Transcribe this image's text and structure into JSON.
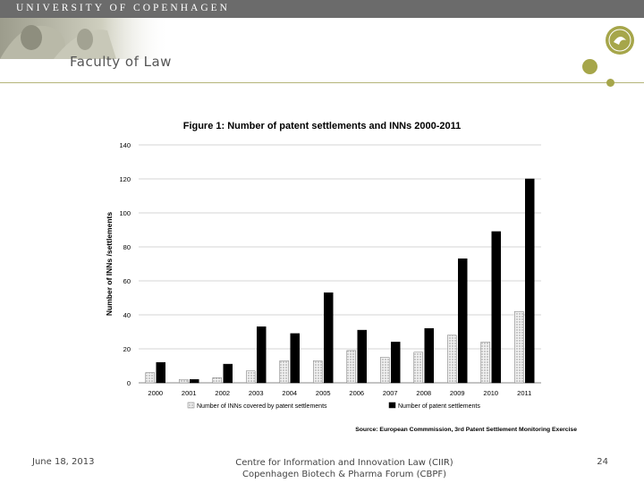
{
  "header": {
    "university": "UNIVERSITY OF COPENHAGEN",
    "faculty": "Faculty of Law"
  },
  "chart_data": {
    "type": "bar",
    "title": "Figure 1: Number of patent settlements and INNs 2000-2011",
    "xlabel": "",
    "ylabel": "Number of INNs /settlements",
    "ylim": [
      0,
      140
    ],
    "yticks": [
      0,
      20,
      40,
      60,
      80,
      100,
      120,
      140
    ],
    "categories": [
      "2000",
      "2001",
      "2002",
      "2003",
      "2004",
      "2005",
      "2006",
      "2007",
      "2008",
      "2009",
      "2010",
      "2011"
    ],
    "series": [
      {
        "name": "Number of INNs covered by patent settlements",
        "values": [
          6,
          2,
          3,
          7,
          13,
          13,
          19,
          15,
          18,
          28,
          24,
          42
        ],
        "color": "#dcdcdc"
      },
      {
        "name": "Number of patent settlements",
        "values": [
          12,
          2,
          11,
          33,
          29,
          53,
          31,
          24,
          32,
          73,
          89,
          120
        ],
        "color": "#000000"
      }
    ],
    "source": "Source: European Commmission, 3rd Patent Settlement Monitoring Exercise",
    "legend_position": "bottom"
  },
  "footer": {
    "date": "June 18, 2013",
    "center_line1": "Centre for Information and Innovation Law (CIIR)",
    "center_line2": "Copenhagen Biotech & Pharma Forum (CBPF)",
    "page": "24"
  },
  "colors": {
    "topbar": "#6b6b6b",
    "accent": "#a6a64a"
  }
}
